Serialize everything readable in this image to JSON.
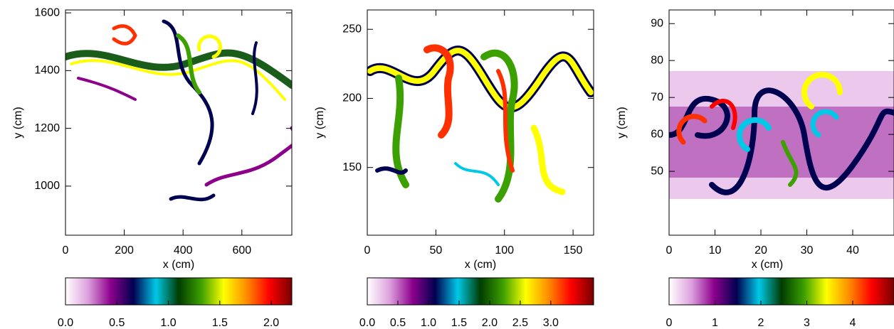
{
  "chart_data": [
    {
      "type": "heatmap",
      "xlabel": "x (cm)",
      "ylabel": "y (cm)",
      "xlim": [
        0,
        770
      ],
      "ylim": [
        830,
        1610
      ],
      "xticks": [
        0,
        200,
        400,
        600
      ],
      "yticks": [
        1000,
        1200,
        1400,
        1600
      ],
      "colorbar": {
        "lim": [
          0,
          2.2
        ],
        "ticks": [
          {
            "value": 0,
            "label": "0.0"
          },
          0.5,
          {
            "value": 1,
            "label": "1.0"
          },
          1.5,
          {
            "value": 2,
            "label": "2.0"
          }
        ]
      }
    },
    {
      "type": "heatmap",
      "xlabel": "x (cm)",
      "ylabel": "y (cm)",
      "xlim": [
        0,
        165
      ],
      "ylim": [
        101,
        264
      ],
      "xticks": [
        0,
        50,
        100,
        150
      ],
      "yticks": [
        150,
        200,
        250
      ],
      "colorbar": {
        "lim": [
          0,
          3.7
        ],
        "ticks": [
          {
            "value": 0,
            "label": "0.0"
          },
          0.5,
          {
            "value": 1,
            "label": "1.0"
          },
          1.5,
          {
            "value": 2,
            "label": "2.0"
          },
          2.5,
          {
            "value": 3,
            "label": "3.0"
          }
        ]
      }
    },
    {
      "type": "heatmap",
      "xlabel": "x (cm)",
      "ylabel": "y (cm)",
      "xlim": [
        0,
        49
      ],
      "ylim": [
        32.7,
        93.7
      ],
      "xticks": [
        0,
        10,
        20,
        30,
        40
      ],
      "yticks": [
        50,
        60,
        70,
        80,
        90
      ],
      "colorbar": {
        "lim": [
          0,
          4.9
        ],
        "ticks": [
          0,
          1,
          2,
          3,
          4
        ]
      }
    }
  ],
  "colormap": [
    "#ffffff",
    "#dca0dc",
    "#8c008c",
    "#000050",
    "#00c8e6",
    "#003c00",
    "#3ca000",
    "#ffff00",
    "#ff8c00",
    "#ff0000",
    "#780000"
  ]
}
